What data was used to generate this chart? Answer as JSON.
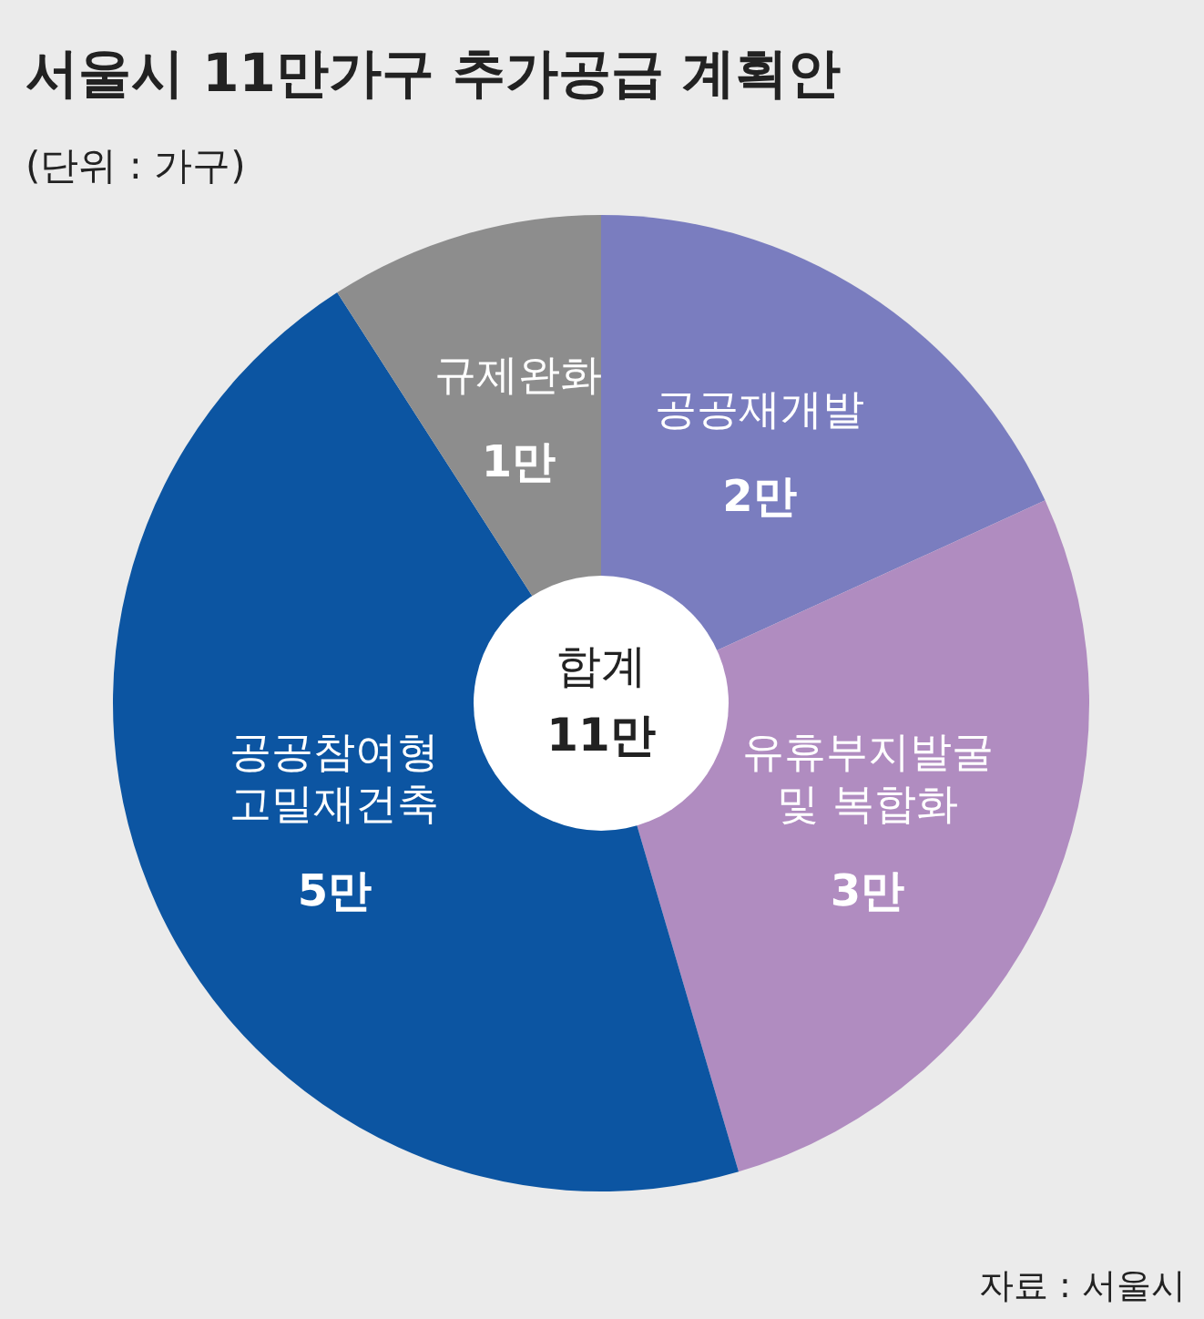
{
  "chart_data": {
    "type": "donut",
    "title": "서울시 11만가구 추가공급 계획안",
    "subtitle": "(단위 : 가구)",
    "categories": [
      "공공재개발",
      "유휴부지발굴\n및 복합화",
      "공공참여형\n고밀재건축",
      "규제완화"
    ],
    "values": [
      2,
      3,
      5,
      1
    ],
    "value_labels": [
      "2만",
      "3만",
      "5만",
      "1만"
    ],
    "colors": [
      "#7a7dbf",
      "#b08cc0",
      "#0c55a2",
      "#8d8d8d"
    ],
    "annotations": [
      "합계\n11만",
      "자료 : 서울시"
    ]
  }
}
